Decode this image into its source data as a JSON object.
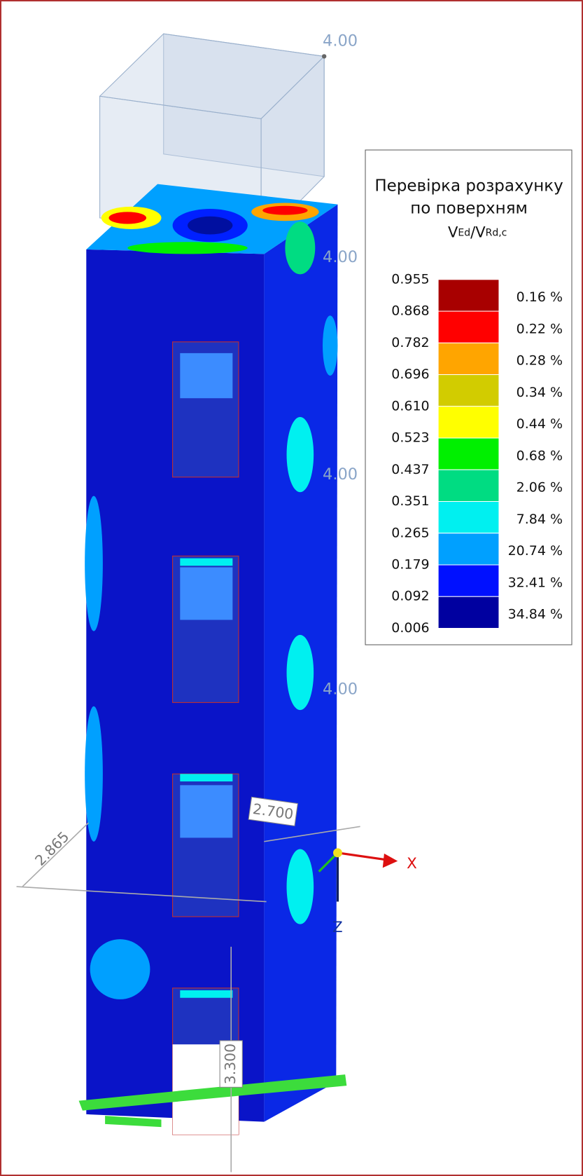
{
  "title_lines": [
    "Перевірка розрахунку",
    "по поверхням"
  ],
  "ratio": [
    "V",
    "Ed",
    "/V",
    "Rd,c"
  ],
  "bounds": [
    "0.955",
    "0.868",
    "0.782",
    "0.696",
    "0.610",
    "0.523",
    "0.437",
    "0.351",
    "0.265",
    "0.179",
    "0.092",
    "0.006"
  ],
  "bands": [
    {
      "color": "#a80000",
      "percent": "0.16 %"
    },
    {
      "color": "#ff0000",
      "percent": "0.22 %"
    },
    {
      "color": "#ffa500",
      "percent": "0.28 %"
    },
    {
      "color": "#d2cc00",
      "percent": "0.34 %"
    },
    {
      "color": "#ffff00",
      "percent": "0.44 %"
    },
    {
      "color": "#00f000",
      "percent": "0.68 %"
    },
    {
      "color": "#00dc82",
      "percent": "2.06 %"
    },
    {
      "color": "#00f0f0",
      "percent": "7.84 %"
    },
    {
      "color": "#00a0ff",
      "percent": "20.74 %"
    },
    {
      "color": "#0010ff",
      "percent": "32.41 %"
    },
    {
      "color": "#0000a0",
      "percent": "34.84 %"
    }
  ],
  "load_labels": [
    "4.00",
    "4.00",
    "4.00",
    "4.00"
  ],
  "dimensions": [
    "2.865",
    "2.700",
    "3.300"
  ],
  "axes": [
    "X",
    "Z"
  ]
}
